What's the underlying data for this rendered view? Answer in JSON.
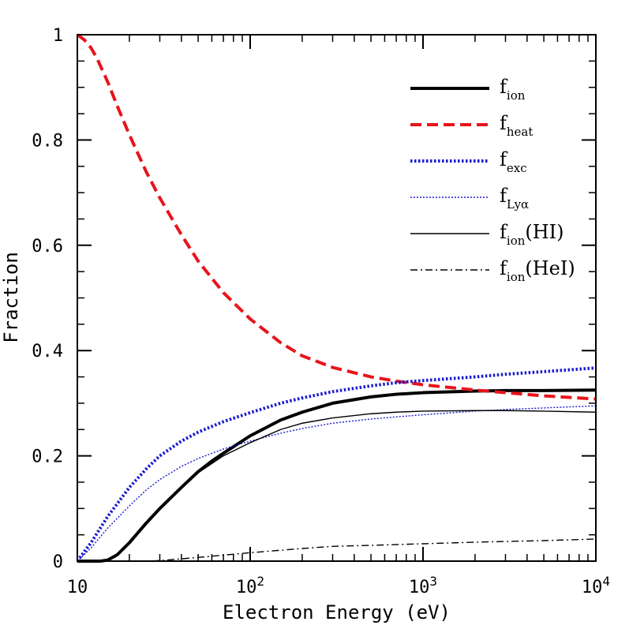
{
  "chart_data": {
    "type": "line",
    "xlabel": "Electron Energy (eV)",
    "ylabel": "Fraction",
    "xscale": "log",
    "xlim": [
      10,
      10000
    ],
    "ylim": [
      0,
      1
    ],
    "grid": false,
    "legend_position": "top-right",
    "x_ticks": [
      {
        "value": 10,
        "base": "10",
        "exp": ""
      },
      {
        "value": 100,
        "base": "10",
        "exp": "2"
      },
      {
        "value": 1000,
        "base": "10",
        "exp": "3"
      },
      {
        "value": 10000,
        "base": "10",
        "exp": "4"
      }
    ],
    "y_ticks": [
      {
        "value": 0,
        "label": "0"
      },
      {
        "value": 0.2,
        "label": "0.2"
      },
      {
        "value": 0.4,
        "label": "0.4"
      },
      {
        "value": 0.6,
        "label": "0.6"
      },
      {
        "value": 0.8,
        "label": "0.8"
      },
      {
        "value": 1,
        "label": "1"
      }
    ],
    "series": [
      {
        "name": "f_ion",
        "legend": {
          "main": "f",
          "sub": "ion",
          "suffix": ""
        },
        "color": "#000000",
        "width": 4,
        "dash": "",
        "x": [
          10,
          13.6,
          15,
          17,
          20,
          25,
          30,
          40,
          50,
          60,
          70,
          100,
          150,
          200,
          300,
          500,
          700,
          1000,
          2000,
          3000,
          5000,
          10000
        ],
        "y": [
          0,
          0,
          0.002,
          0.012,
          0.035,
          0.072,
          0.1,
          0.14,
          0.17,
          0.19,
          0.205,
          0.238,
          0.268,
          0.283,
          0.3,
          0.312,
          0.317,
          0.32,
          0.323,
          0.324,
          0.324,
          0.325
        ]
      },
      {
        "name": "f_heat",
        "legend": {
          "main": "f",
          "sub": "heat",
          "suffix": ""
        },
        "color": "#e8141c",
        "width": 4,
        "dash": "14 7",
        "x": [
          10,
          11,
          12,
          13,
          15,
          17,
          20,
          25,
          30,
          40,
          50,
          70,
          100,
          150,
          200,
          300,
          500,
          700,
          1000,
          2000,
          3000,
          5000,
          10000
        ],
        "y": [
          1.0,
          0.99,
          0.975,
          0.955,
          0.91,
          0.865,
          0.81,
          0.74,
          0.69,
          0.62,
          0.57,
          0.51,
          0.46,
          0.415,
          0.39,
          0.368,
          0.35,
          0.342,
          0.335,
          0.325,
          0.32,
          0.314,
          0.308
        ]
      },
      {
        "name": "f_exc",
        "legend": {
          "main": "f",
          "sub": "exc",
          "suffix": ""
        },
        "color": "#1a1ad0",
        "width": 4,
        "dash": "2.5 2.5",
        "x": [
          10,
          12,
          15,
          20,
          25,
          30,
          40,
          50,
          70,
          100,
          150,
          200,
          300,
          500,
          700,
          1000,
          2000,
          3000,
          5000,
          10000
        ],
        "y": [
          0,
          0.035,
          0.085,
          0.14,
          0.175,
          0.2,
          0.228,
          0.245,
          0.265,
          0.282,
          0.3,
          0.31,
          0.322,
          0.333,
          0.339,
          0.343,
          0.35,
          0.355,
          0.36,
          0.367
        ]
      },
      {
        "name": "f_Lyα",
        "legend": {
          "main": "f",
          "sub": "Lyα",
          "suffix": ""
        },
        "color": "#1a1ad0",
        "width": 1.4,
        "dash": "2 2",
        "x": [
          10,
          12,
          15,
          20,
          25,
          30,
          40,
          50,
          70,
          100,
          150,
          200,
          300,
          500,
          700,
          1000,
          2000,
          3000,
          5000,
          10000
        ],
        "y": [
          0,
          0.025,
          0.063,
          0.105,
          0.135,
          0.155,
          0.18,
          0.195,
          0.213,
          0.228,
          0.243,
          0.252,
          0.262,
          0.27,
          0.274,
          0.278,
          0.285,
          0.288,
          0.291,
          0.295
        ]
      },
      {
        "name": "f_ion(HI)",
        "legend": {
          "main": "f",
          "sub": "ion",
          "suffix": "(HI)"
        },
        "color": "#000000",
        "width": 1.4,
        "dash": "",
        "x": [
          10,
          13.6,
          15,
          17,
          20,
          25,
          30,
          40,
          50,
          70,
          100,
          150,
          200,
          300,
          500,
          700,
          1000,
          2000,
          3000,
          5000,
          10000
        ],
        "y": [
          0,
          0,
          0.003,
          0.013,
          0.036,
          0.073,
          0.1,
          0.14,
          0.168,
          0.2,
          0.225,
          0.25,
          0.262,
          0.272,
          0.28,
          0.283,
          0.285,
          0.286,
          0.286,
          0.285,
          0.283
        ]
      },
      {
        "name": "f_ion(HeI)",
        "legend": {
          "main": "f",
          "sub": "ion",
          "suffix": "(HeI)"
        },
        "color": "#000000",
        "width": 1.4,
        "dash": "9 4 2 4",
        "x": [
          10,
          24.6,
          30,
          50,
          100,
          200,
          300,
          500,
          1000,
          2000,
          5000,
          10000
        ],
        "y": [
          0,
          0,
          0.001,
          0.007,
          0.016,
          0.024,
          0.028,
          0.03,
          0.033,
          0.036,
          0.039,
          0.042
        ]
      }
    ]
  }
}
